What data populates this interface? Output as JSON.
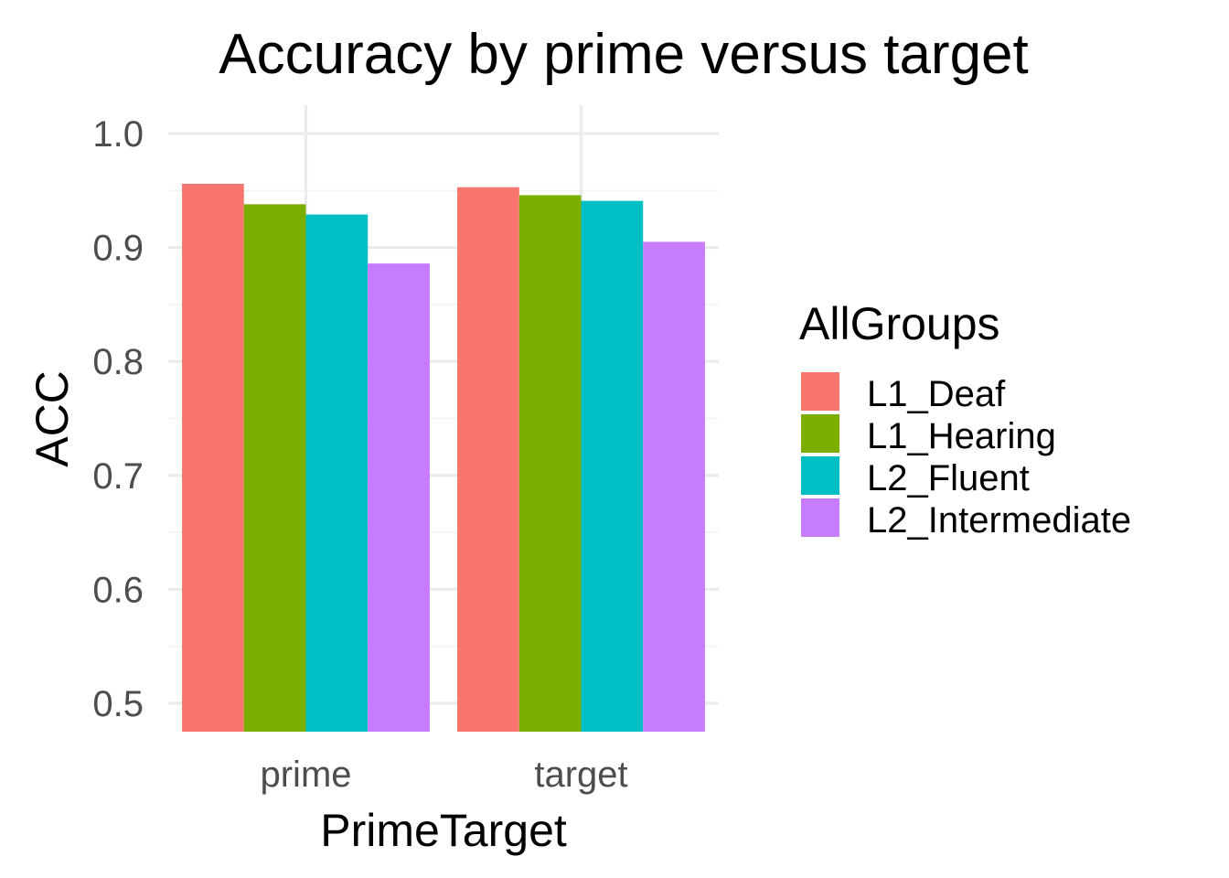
{
  "chart_data": {
    "type": "bar",
    "title": "Accuracy by prime versus target",
    "xlabel": "PrimeTarget",
    "ylabel": "ACC",
    "categories": [
      "prime",
      "target"
    ],
    "ylim": [
      0.475,
      1.025
    ],
    "yticks": [
      0.5,
      0.6,
      0.7,
      0.8,
      0.9,
      1.0
    ],
    "ytick_labels": [
      "0.5",
      "0.6",
      "0.7",
      "0.8",
      "0.9",
      "1.0"
    ],
    "grid": true,
    "legend": {
      "title": "AllGroups",
      "position": "right"
    },
    "series": [
      {
        "name": "L1_Deaf",
        "color": "#F8766D",
        "values": [
          0.956,
          0.953
        ]
      },
      {
        "name": "L1_Hearing",
        "color": "#7CAE00",
        "values": [
          0.938,
          0.946
        ]
      },
      {
        "name": "L2_Fluent",
        "color": "#00BFC4",
        "values": [
          0.929,
          0.941
        ]
      },
      {
        "name": "L2_Intermediate",
        "color": "#C77CFF",
        "values": [
          0.886,
          0.905
        ]
      }
    ]
  }
}
